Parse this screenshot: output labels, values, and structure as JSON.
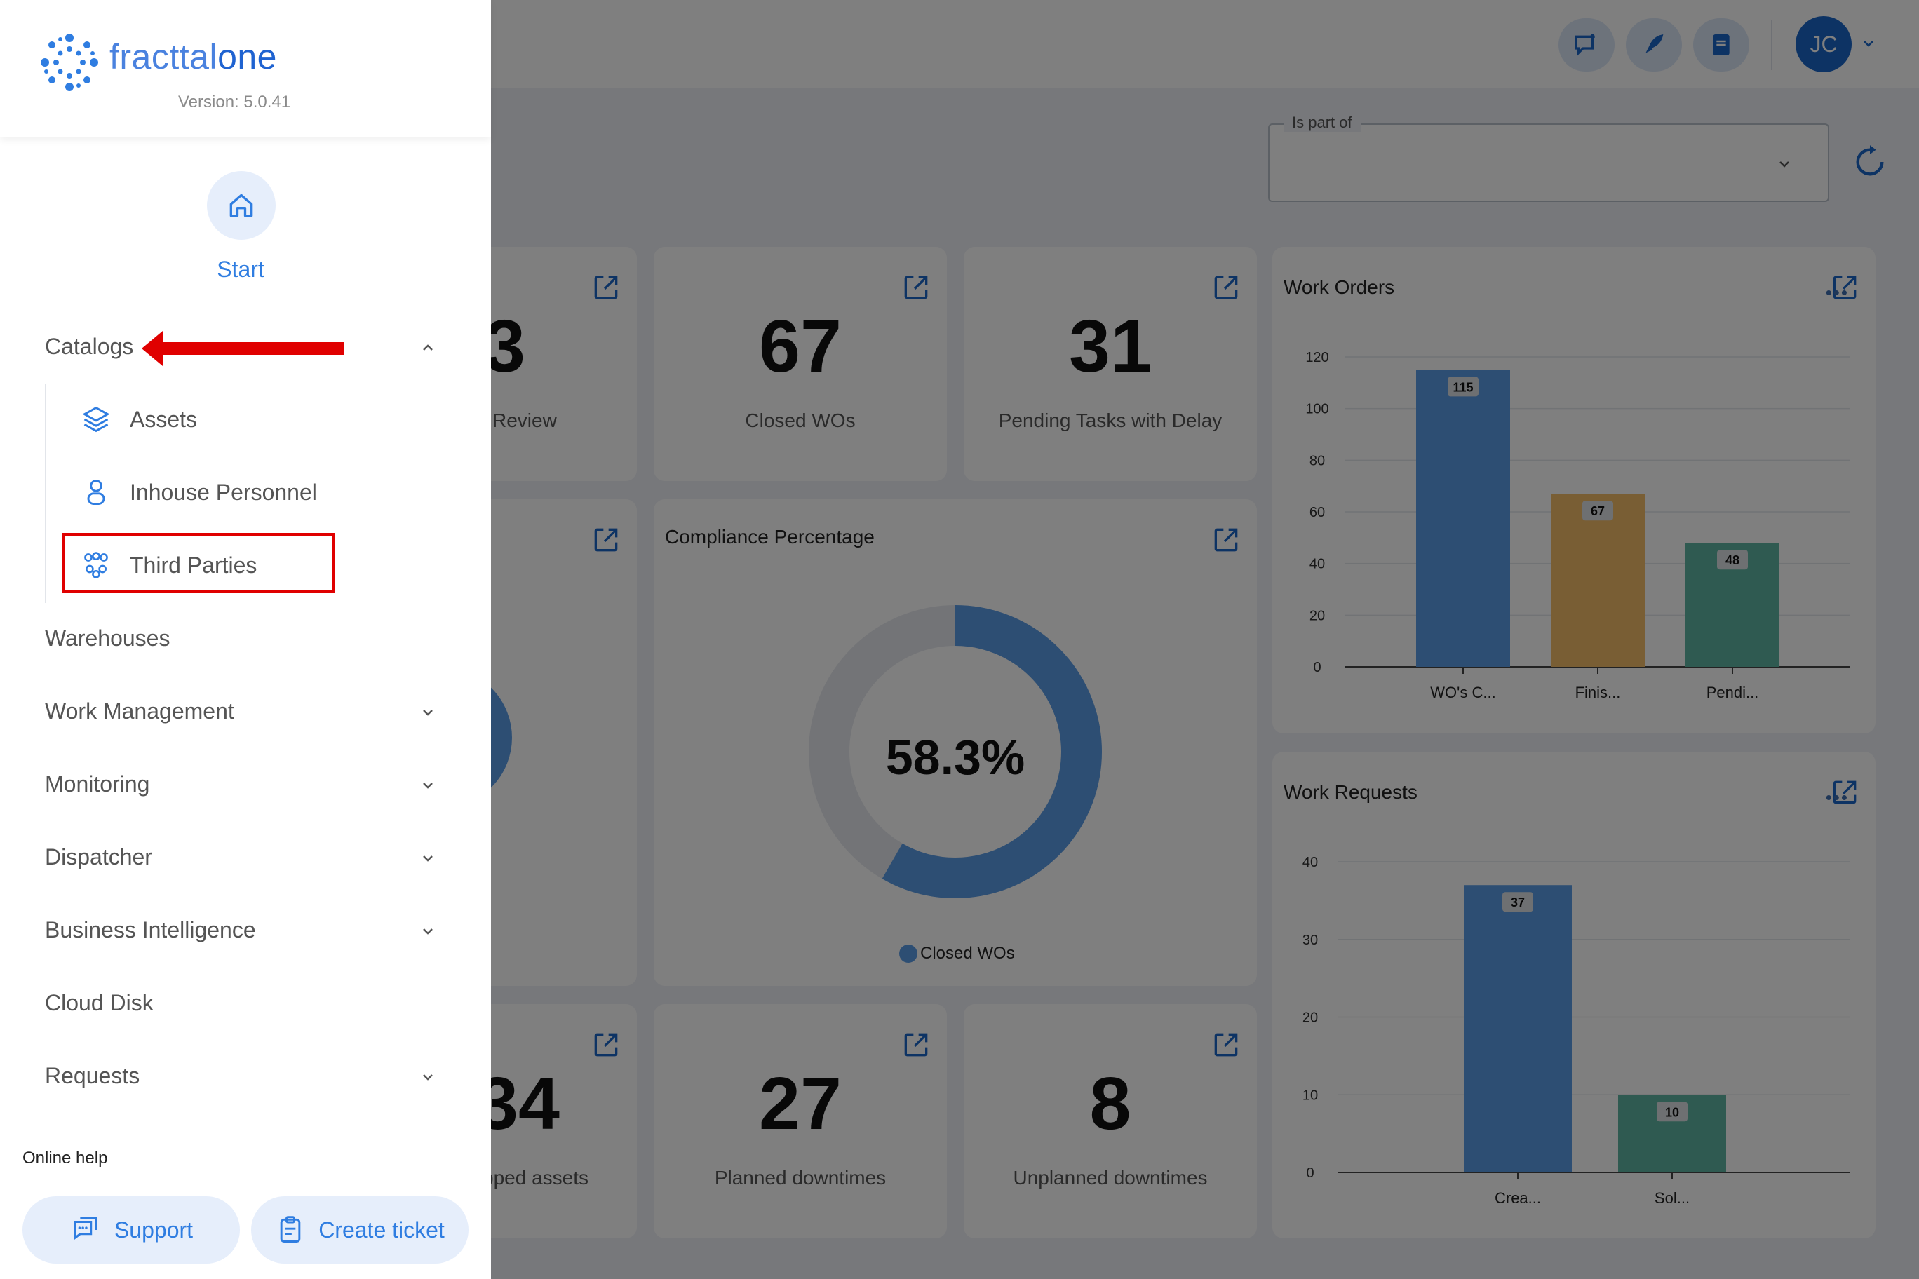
{
  "app": {
    "logo_main": "fracttal",
    "logo_suffix": "one",
    "version": "Version: 5.0.41"
  },
  "sidebar": {
    "start_label": "Start",
    "catalogs": {
      "label": "Catalogs",
      "items": [
        {
          "label": "Assets",
          "icon": "layers-icon"
        },
        {
          "label": "Inhouse Personnel",
          "icon": "person-icon"
        },
        {
          "label": "Third Parties",
          "icon": "group-icon"
        }
      ]
    },
    "menu": [
      {
        "label": "Warehouses",
        "has_chevron": false
      },
      {
        "label": "Work Management",
        "has_chevron": true
      },
      {
        "label": "Monitoring",
        "has_chevron": true
      },
      {
        "label": "Dispatcher",
        "has_chevron": true
      },
      {
        "label": "Business Intelligence",
        "has_chevron": true
      },
      {
        "label": "Cloud Disk",
        "has_chevron": false
      },
      {
        "label": "Requests",
        "has_chevron": true
      }
    ],
    "online_help": "Online help",
    "support_label": "Support",
    "create_ticket_label": "Create ticket"
  },
  "topbar": {
    "user_initials": "JC"
  },
  "filter": {
    "label": "Is part of",
    "value": ""
  },
  "kpis": {
    "review_value": "3",
    "review_label": "Review",
    "closed_wos_value": "67",
    "closed_wos_label": "Closed WOs",
    "pending_delay_value": "31",
    "pending_delay_label": "Pending Tasks with Delay",
    "stopped_value": "34",
    "stopped_label": "pped assets",
    "planned_value": "27",
    "planned_label": "Planned downtimes",
    "unplanned_value": "8",
    "unplanned_label": "Unplanned downtimes"
  },
  "compliance": {
    "title": "Compliance Percentage",
    "value_text": "58.3%",
    "legend": "Closed WOs"
  },
  "chart_data": [
    {
      "type": "bar",
      "title": "Work Orders",
      "categories": [
        "WO's C...",
        "Finis...",
        "Pendi..."
      ],
      "values": [
        115,
        67,
        48
      ],
      "colors": [
        "#5a9ce6",
        "#f2bd68",
        "#5fb5a2"
      ],
      "yticks": [
        0,
        20,
        40,
        60,
        80,
        100,
        120
      ],
      "ylim": [
        0,
        120
      ]
    },
    {
      "type": "bar",
      "title": "Work Requests",
      "categories": [
        "Crea...",
        "Sol..."
      ],
      "values": [
        37,
        10
      ],
      "colors": [
        "#5a9ce6",
        "#5fb5a2"
      ],
      "yticks": [
        0,
        10,
        20,
        30,
        40
      ],
      "ylim": [
        0,
        40
      ]
    },
    {
      "type": "pie",
      "title": "Compliance Percentage",
      "categories": [
        "Closed WOs"
      ],
      "values": [
        58.3
      ],
      "colors": [
        "#5a9ce6",
        "#e6e9ee"
      ]
    }
  ],
  "colors": {
    "accent": "#2f7de1",
    "highlight": "#e00000"
  }
}
